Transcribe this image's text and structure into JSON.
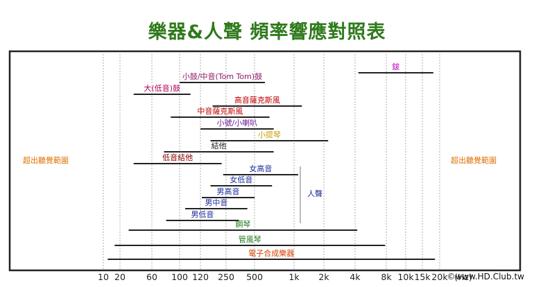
{
  "chart_data": {
    "type": "range-bar",
    "title": "樂器&人聲 頻率響應對照表",
    "x_scale": "log",
    "xlim": [
      10,
      28000
    ],
    "x_ticks": [
      {
        "value": 10,
        "label": "10"
      },
      {
        "value": 20,
        "label": "20"
      },
      {
        "value": 60,
        "label": "60"
      },
      {
        "value": 100,
        "label": "100"
      },
      {
        "value": 120,
        "label": "120"
      },
      {
        "value": 250,
        "label": "250"
      },
      {
        "value": 500,
        "label": "500"
      },
      {
        "value": 1000,
        "label": "1k"
      },
      {
        "value": 2000,
        "label": "2k"
      },
      {
        "value": 4000,
        "label": "4k"
      },
      {
        "value": 8000,
        "label": "8k"
      },
      {
        "value": 10000,
        "label": "10k"
      },
      {
        "value": 15000,
        "label": "15k"
      },
      {
        "value": 20000,
        "label": "20k"
      }
    ],
    "x_unit": "(Hz)",
    "grid": "vertical",
    "out_of_range_labels": {
      "left": "超出聽覺範圍",
      "right": "超出聽覺範圍"
    },
    "bracket_label": "人聲",
    "series": [
      {
        "name": "鈸",
        "low": 4300,
        "high": 18000,
        "color": "#c000c0"
      },
      {
        "name": "小鼓/中音(Tom Tom)鼓",
        "low": 100,
        "high": 600,
        "color": "#8b1a6b"
      },
      {
        "name": "大(低音)鼓",
        "low": 32,
        "high": 110,
        "color": "#b0005a"
      },
      {
        "name": "高音薩克斯風",
        "low": 170,
        "high": 1200,
        "color": "#c00000"
      },
      {
        "name": "中音薩克斯風",
        "low": 85,
        "high": 650,
        "color": "#c00000"
      },
      {
        "name": "小號/小喇叭",
        "low": 120,
        "high": 700,
        "color": "#6a1a9a"
      },
      {
        "name": "小提琴",
        "low": 160,
        "high": 2200,
        "color": "#c8a000"
      },
      {
        "name": "結他",
        "low": 75,
        "high": 700,
        "color": "#222222"
      },
      {
        "name": "低音結他",
        "low": 32,
        "high": 220,
        "color": "#8b0000"
      },
      {
        "name": "女高音",
        "low": 230,
        "high": 1100,
        "color": "#1a2a9a"
      },
      {
        "name": "女低音",
        "low": 160,
        "high": 680,
        "color": "#1a2a9a"
      },
      {
        "name": "男高音",
        "low": 125,
        "high": 500,
        "color": "#1a2a9a"
      },
      {
        "name": "男中音",
        "low": 105,
        "high": 420,
        "color": "#1a2a9a"
      },
      {
        "name": "男低音",
        "low": 78,
        "high": 340,
        "color": "#1a2a9a"
      },
      {
        "name": "鋼琴",
        "low": 27,
        "high": 4200,
        "color": "#1e7a1e"
      },
      {
        "name": "管風琴",
        "low": 16,
        "high": 7800,
        "color": "#1e7a1e"
      },
      {
        "name": "電子合成樂器",
        "low": 12,
        "high": 18500,
        "color": "#d04000"
      }
    ],
    "colors": {
      "title": "#2f7a1c",
      "out_of_range": "#e07000",
      "bar": "#222222",
      "frame": "#222222"
    }
  },
  "watermark": "©www.HD.Club.tw"
}
